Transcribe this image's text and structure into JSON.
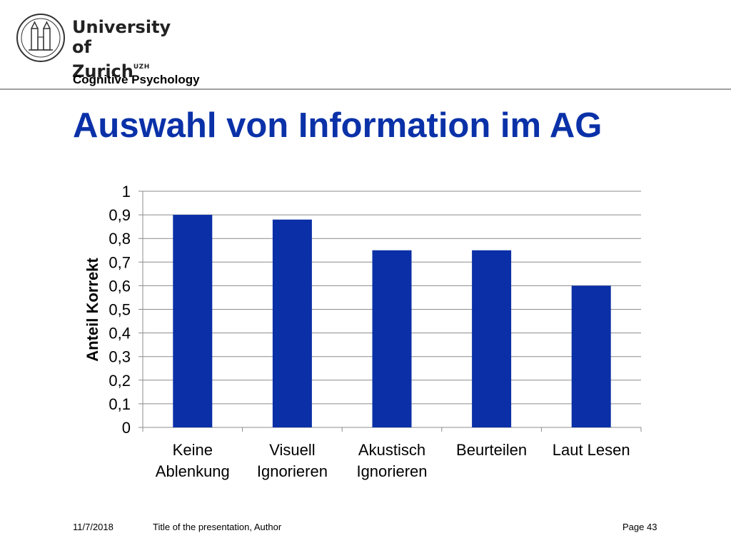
{
  "header": {
    "logo_line1": "University of",
    "logo_line2": "Zurich",
    "logo_superscript": "UZH",
    "department": "Cognitive Psychology"
  },
  "slide": {
    "title": "Auswahl von Information im AG"
  },
  "chart_data": {
    "type": "bar",
    "categories": [
      [
        "Keine",
        "Ablenkung"
      ],
      [
        "Visuell",
        "Ignorieren"
      ],
      [
        "Akustisch",
        "Ignorieren"
      ],
      [
        "Beurteilen"
      ],
      [
        "Laut Lesen"
      ]
    ],
    "values": [
      0.9,
      0.88,
      0.75,
      0.75,
      0.6
    ],
    "ylabel": "Anteil Korrekt",
    "xlabel": "",
    "ylim": [
      0,
      1
    ],
    "yticks": [
      "0",
      "0,1",
      "0,2",
      "0,3",
      "0,4",
      "0,5",
      "0,6",
      "0,7",
      "0,8",
      "0,9",
      "1"
    ],
    "grid": true,
    "legend": "none",
    "bar_color": "#0a2fa6"
  },
  "footer": {
    "date": "11/7/2018",
    "title": "Title of the presentation, Author",
    "page": "Page 43"
  }
}
